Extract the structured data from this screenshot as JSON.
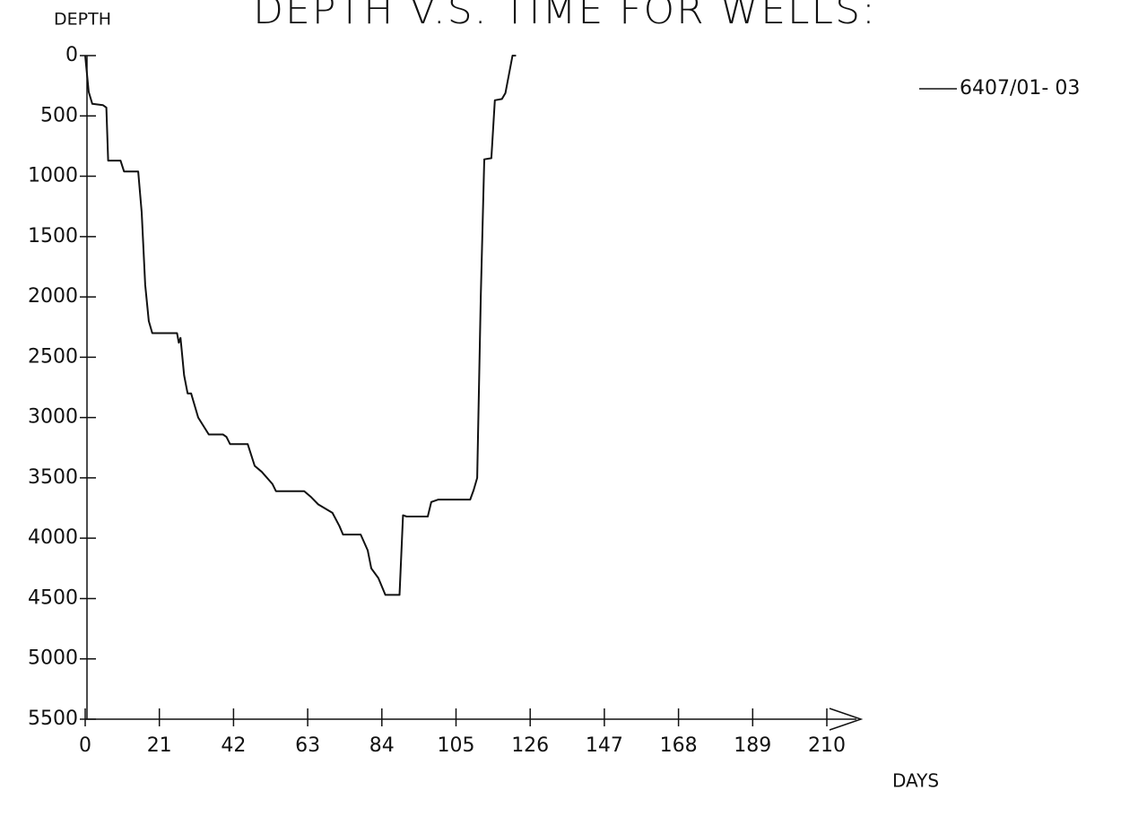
{
  "chart_data": {
    "type": "line",
    "title": "DEPTH V.S. TIME FOR WELLS:",
    "y_label": "DEPTH",
    "x_label": "DAYS",
    "x": [
      0,
      1,
      2,
      5,
      6,
      6.5,
      10,
      11,
      15,
      16,
      17,
      18,
      19,
      26,
      26.5,
      27,
      28,
      29,
      30,
      32,
      35,
      39,
      40,
      41,
      46,
      48,
      50,
      53,
      54,
      62,
      64,
      66,
      70,
      72,
      73,
      78,
      80,
      81,
      83,
      85,
      89,
      90,
      91,
      97,
      98,
      100,
      109,
      110,
      111,
      112,
      113,
      115,
      116,
      118,
      119,
      121,
      122
    ],
    "series": [
      {
        "name": "6407/01- 03",
        "color": "#111111",
        "values": [
          0,
          300,
          400,
          410,
          430,
          870,
          870,
          960,
          960,
          1300,
          1900,
          2200,
          2300,
          2300,
          2380,
          2340,
          2650,
          2800,
          2800,
          3000,
          3140,
          3140,
          3160,
          3220,
          3220,
          3400,
          3450,
          3550,
          3610,
          3610,
          3660,
          3720,
          3790,
          3900,
          3970,
          3970,
          4100,
          4250,
          4330,
          4470,
          4470,
          3810,
          3820,
          3820,
          3700,
          3680,
          3680,
          3600,
          3500,
          2000,
          860,
          850,
          370,
          360,
          310,
          0,
          0
        ]
      }
    ],
    "xlim": [
      0,
      210
    ],
    "ylim": [
      5500,
      0
    ],
    "xticks": [
      0,
      21,
      42,
      63,
      84,
      105,
      126,
      147,
      168,
      189,
      210
    ],
    "yticks": [
      0,
      500,
      1000,
      1500,
      2000,
      2500,
      3000,
      3500,
      4000,
      4500,
      5000,
      5500
    ],
    "legend": "upper right"
  }
}
